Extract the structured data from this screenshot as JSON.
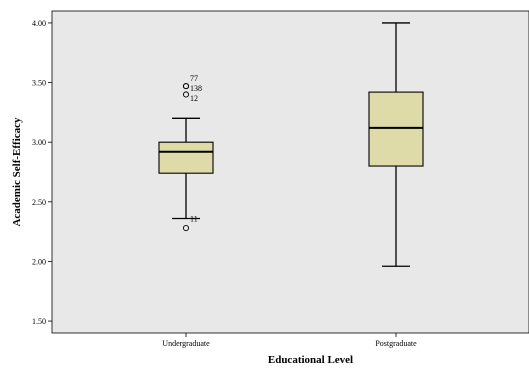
{
  "chart_data": {
    "type": "boxplot",
    "xlabel": "Educational Level",
    "ylabel": "Academic Self-Efficacy",
    "ylim": [
      1.4,
      4.1
    ],
    "yticks": [
      1.5,
      2.0,
      2.5,
      3.0,
      3.5,
      4.0
    ],
    "ytick_labels": [
      "1.50",
      "2.00",
      "2.50",
      "3.00",
      "3.50",
      "4.00"
    ],
    "grid": false,
    "colors": {
      "plot_bg": "#e8e8e8",
      "box_fill": "#dedba8",
      "stroke": "#000000"
    },
    "categories": [
      "Undergraduate",
      "Postgraduate"
    ],
    "boxes": [
      {
        "category": "Undergraduate",
        "whisker_low": 2.36,
        "q1": 2.74,
        "median": 2.92,
        "q3": 3.0,
        "whisker_high": 3.2,
        "outliers": [
          {
            "value": 3.47,
            "label": "77"
          },
          {
            "value": 3.47,
            "label": "138"
          },
          {
            "value": 3.4,
            "label": "12"
          },
          {
            "value": 2.28,
            "label": "11"
          }
        ]
      },
      {
        "category": "Postgraduate",
        "whisker_low": 1.96,
        "q1": 2.8,
        "median": 3.12,
        "q3": 3.42,
        "whisker_high": 4.0,
        "outliers": []
      }
    ]
  }
}
